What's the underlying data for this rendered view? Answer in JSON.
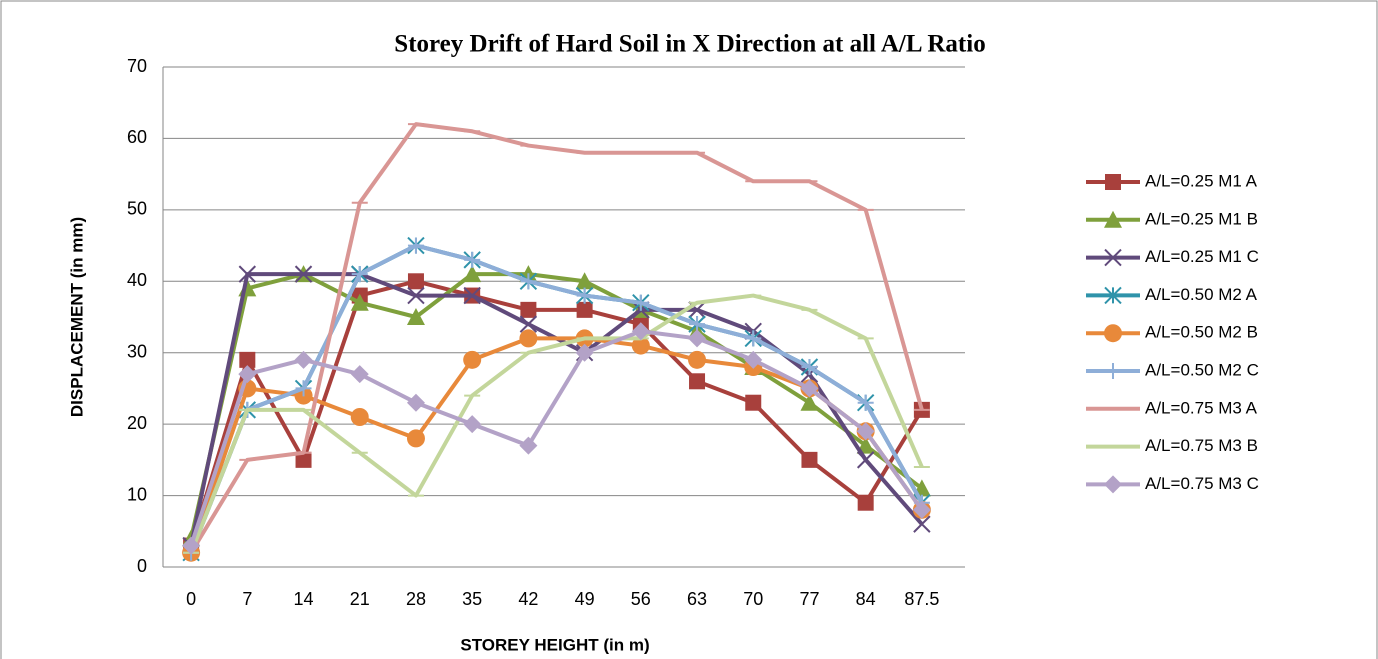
{
  "chart_data": {
    "type": "line",
    "title": "Storey Drift of Hard Soil in X Direction at all A/L Ratio",
    "x_label": "STOREY HEIGHT (in m)",
    "y_label": "DISPLACEMENT (in mm)",
    "categories": [
      "0",
      "7",
      "14",
      "21",
      "28",
      "35",
      "42",
      "49",
      "56",
      "63",
      "70",
      "77",
      "84",
      "87.5"
    ],
    "ylim": [
      0,
      70
    ],
    "yticks": [
      0,
      10,
      20,
      30,
      40,
      50,
      60,
      70
    ],
    "grid": true,
    "legend": "right",
    "series": [
      {
        "name": "A/L=0.25 M1 A",
        "color": "#a8403c",
        "marker": "square",
        "values": [
          3,
          29,
          15,
          38,
          40,
          38,
          36,
          36,
          34,
          26,
          23,
          15,
          9,
          22
        ]
      },
      {
        "name": "A/L=0.25 M1 B",
        "color": "#7fa03c",
        "marker": "triangle",
        "values": [
          4,
          39,
          41,
          37,
          35,
          41,
          41,
          40,
          36,
          33,
          28,
          23,
          17,
          11
        ]
      },
      {
        "name": "A/L=0.25 M1 C",
        "color": "#604a7b",
        "marker": "x",
        "values": [
          3,
          41,
          41,
          41,
          38,
          38,
          34,
          30,
          36,
          36,
          33,
          27,
          15,
          6
        ]
      },
      {
        "name": "A/L=0.50 M2 A",
        "color": "#2f93aa",
        "marker": "star",
        "values": [
          2,
          22,
          25,
          41,
          45,
          43,
          40,
          38,
          37,
          34,
          32,
          28,
          23,
          9
        ]
      },
      {
        "name": "A/L=0.50 M2 B",
        "color": "#e8893a",
        "marker": "circle",
        "values": [
          2,
          25,
          24,
          21,
          18,
          29,
          32,
          32,
          31,
          29,
          28,
          25,
          19,
          8
        ]
      },
      {
        "name": "A/L=0.50 M2 C",
        "color": "#8eaed8",
        "marker": "plus",
        "values": [
          2,
          22,
          25,
          41,
          45,
          43,
          40,
          38,
          37,
          34,
          32,
          28,
          23,
          9
        ]
      },
      {
        "name": "A/L=0.75 M3 A",
        "color": "#d99694",
        "marker": "dash",
        "values": [
          2,
          15,
          16,
          51,
          62,
          61,
          59,
          58,
          58,
          58,
          54,
          54,
          50,
          22
        ]
      },
      {
        "name": "A/L=0.75 M3 B",
        "color": "#c3d69b",
        "marker": "dash",
        "values": [
          2,
          22,
          22,
          16,
          10,
          24,
          30,
          32,
          32,
          37,
          38,
          36,
          32,
          14
        ]
      },
      {
        "name": "A/L=0.75 M3 C",
        "color": "#b3a2c7",
        "marker": "diamond",
        "values": [
          3,
          27,
          29,
          27,
          23,
          20,
          17,
          30,
          33,
          32,
          29,
          25,
          19,
          8
        ]
      }
    ]
  }
}
